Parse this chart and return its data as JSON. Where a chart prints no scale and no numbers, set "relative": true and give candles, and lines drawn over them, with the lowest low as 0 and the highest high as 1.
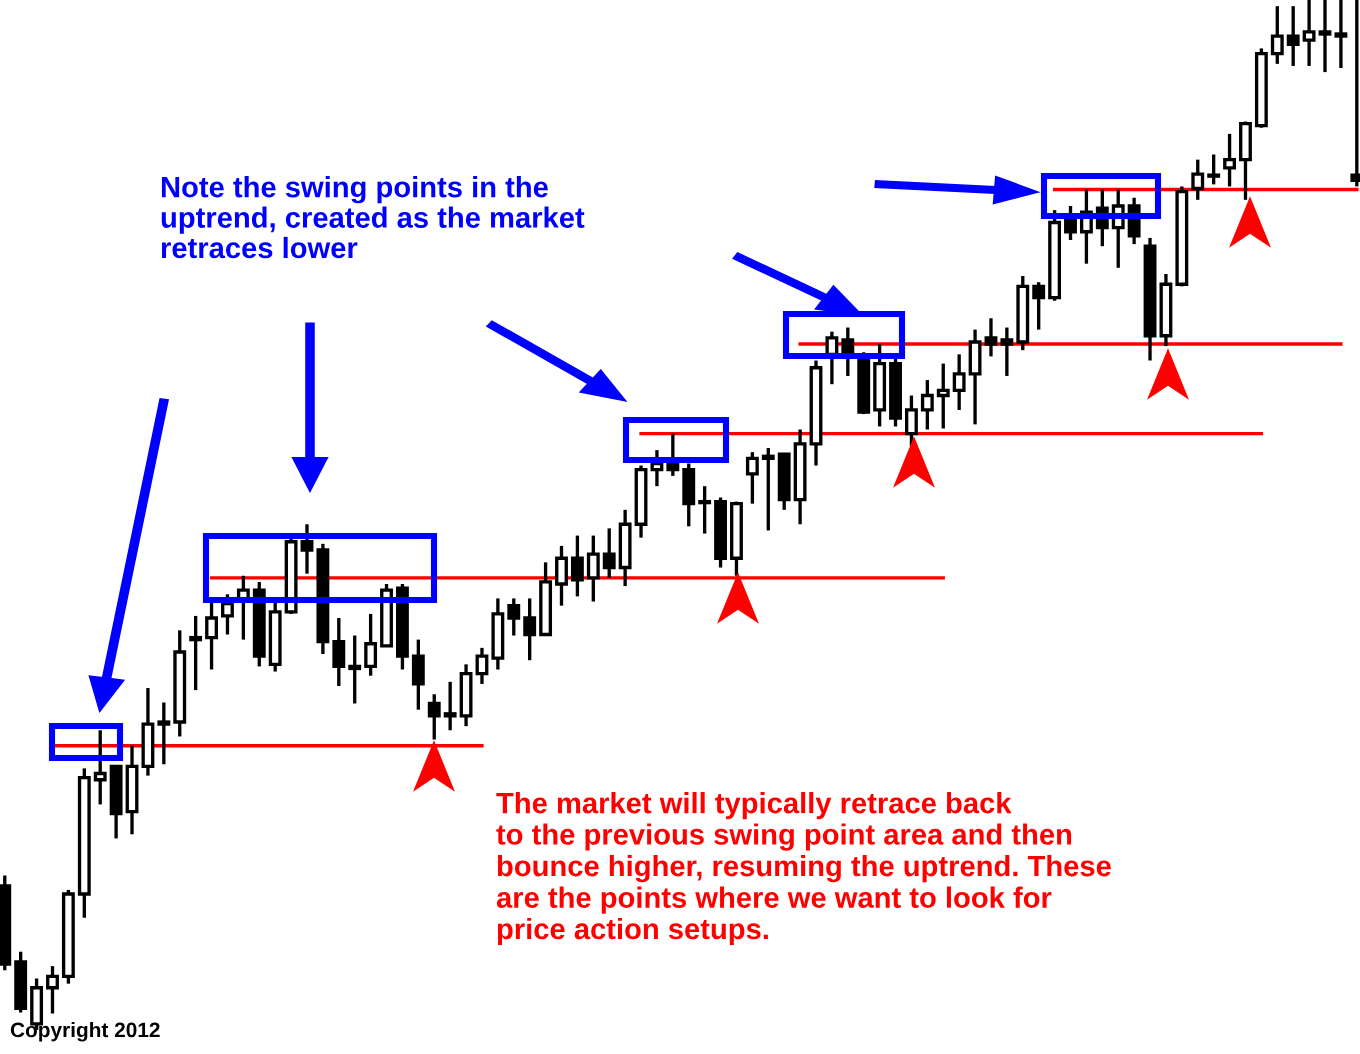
{
  "chart_data": {
    "type": "candlestick",
    "relative": true,
    "color": "#000000",
    "categories": [
      null,
      null,
      null,
      null,
      null,
      null,
      null,
      null,
      null,
      null,
      null,
      null,
      null,
      null,
      null,
      null,
      null,
      null,
      null,
      null,
      null,
      null,
      null,
      null,
      null,
      null,
      null,
      null,
      null,
      null,
      null,
      null,
      null,
      null,
      null,
      null,
      null,
      null,
      null,
      null,
      null,
      null,
      null,
      null,
      null,
      null,
      null,
      null,
      null,
      null,
      null,
      null,
      null,
      null,
      null,
      null,
      null,
      null,
      null,
      null,
      null,
      null,
      null,
      null,
      null,
      null,
      null,
      null,
      null,
      null,
      null,
      null,
      null,
      null,
      null,
      null,
      null,
      null,
      null,
      null,
      null,
      null,
      null,
      null,
      null,
      null
    ],
    "ohlc": [
      [
        0.14,
        0.15,
        0.058,
        0.064
      ],
      [
        0.066,
        0.076,
        0.017,
        0.021
      ],
      [
        0.006,
        0.05,
        0,
        0.041
      ],
      [
        0.041,
        0.062,
        0.016,
        0.052
      ],
      [
        0.052,
        0.136,
        0.045,
        0.132
      ],
      [
        0.132,
        0.254,
        0.109,
        0.245
      ],
      [
        0.243,
        0.291,
        0.219,
        0.249
      ],
      [
        0.256,
        0.256,
        0.186,
        0.21
      ],
      [
        0.212,
        0.276,
        0.19,
        0.256
      ],
      [
        0.256,
        0.332,
        0.247,
        0.297
      ],
      [
        0.297,
        0.318,
        0.258,
        0.299
      ],
      [
        0.299,
        0.388,
        0.285,
        0.367
      ],
      [
        0.379,
        0.402,
        0.33,
        0.381
      ],
      [
        0.381,
        0.417,
        0.35,
        0.4
      ],
      [
        0.402,
        0.423,
        0.384,
        0.414
      ],
      [
        0.417,
        0.441,
        0.379,
        0.427
      ],
      [
        0.427,
        0.435,
        0.353,
        0.363
      ],
      [
        0.355,
        0.417,
        0.348,
        0.406
      ],
      [
        0.406,
        0.48,
        0.404,
        0.474
      ],
      [
        0.474,
        0.491,
        0.443,
        0.466
      ],
      [
        0.466,
        0.472,
        0.365,
        0.377
      ],
      [
        0.377,
        0.4,
        0.334,
        0.353
      ],
      [
        0.353,
        0.383,
        0.317,
        0.351
      ],
      [
        0.353,
        0.404,
        0.344,
        0.375
      ],
      [
        0.373,
        0.433,
        0.373,
        0.427
      ],
      [
        0.429,
        0.433,
        0.35,
        0.363
      ],
      [
        0.363,
        0.379,
        0.311,
        0.336
      ],
      [
        0.317,
        0.326,
        0.282,
        0.305
      ],
      [
        0.305,
        0.338,
        0.291,
        0.307
      ],
      [
        0.305,
        0.355,
        0.295,
        0.346
      ],
      [
        0.346,
        0.371,
        0.336,
        0.363
      ],
      [
        0.361,
        0.419,
        0.35,
        0.404
      ],
      [
        0.412,
        0.419,
        0.383,
        0.4
      ],
      [
        0.4,
        0.419,
        0.359,
        0.384
      ],
      [
        0.384,
        0.454,
        0.383,
        0.435
      ],
      [
        0.433,
        0.47,
        0.412,
        0.458
      ],
      [
        0.458,
        0.48,
        0.421,
        0.437
      ],
      [
        0.439,
        0.48,
        0.416,
        0.462
      ],
      [
        0.462,
        0.487,
        0.439,
        0.449
      ],
      [
        0.449,
        0.505,
        0.431,
        0.491
      ],
      [
        0.491,
        0.548,
        0.478,
        0.544
      ],
      [
        0.544,
        0.563,
        0.528,
        0.55
      ],
      [
        0.551,
        0.579,
        0.538,
        0.544
      ],
      [
        0.544,
        0.55,
        0.489,
        0.511
      ],
      [
        0.513,
        0.528,
        0.482,
        0.512
      ],
      [
        0.513,
        0.517,
        0.449,
        0.458
      ],
      [
        0.458,
        0.513,
        0.441,
        0.511
      ],
      [
        0.54,
        0.561,
        0.511,
        0.555
      ],
      [
        0.555,
        0.565,
        0.485,
        0.557
      ],
      [
        0.559,
        0.559,
        0.505,
        0.515
      ],
      [
        0.515,
        0.583,
        0.491,
        0.569
      ],
      [
        0.569,
        0.65,
        0.548,
        0.643
      ],
      [
        0.656,
        0.678,
        0.627,
        0.672
      ],
      [
        0.67,
        0.682,
        0.635,
        0.656
      ],
      [
        0.652,
        0.658,
        0.598,
        0.6
      ],
      [
        0.602,
        0.666,
        0.586,
        0.647
      ],
      [
        0.647,
        0.654,
        0.586,
        0.594
      ],
      [
        0.579,
        0.616,
        0.567,
        0.602
      ],
      [
        0.602,
        0.631,
        0.583,
        0.616
      ],
      [
        0.616,
        0.647,
        0.584,
        0.621
      ],
      [
        0.621,
        0.656,
        0.602,
        0.637
      ],
      [
        0.637,
        0.68,
        0.588,
        0.668
      ],
      [
        0.672,
        0.691,
        0.654,
        0.666
      ],
      [
        0.67,
        0.682,
        0.635,
        0.666
      ],
      [
        0.668,
        0.732,
        0.66,
        0.722
      ],
      [
        0.722,
        0.726,
        0.68,
        0.711
      ],
      [
        0.711,
        0.796,
        0.708,
        0.784
      ],
      [
        0.788,
        0.8,
        0.767,
        0.775
      ],
      [
        0.775,
        0.816,
        0.744,
        0.794
      ],
      [
        0.798,
        0.816,
        0.761,
        0.779
      ],
      [
        0.779,
        0.816,
        0.74,
        0.8
      ],
      [
        0.8,
        0.808,
        0.763,
        0.771
      ],
      [
        0.761,
        0.769,
        0.65,
        0.674
      ],
      [
        0.674,
        0.734,
        0.664,
        0.724
      ],
      [
        0.724,
        0.819,
        0.722,
        0.814
      ],
      [
        0.817,
        0.845,
        0.806,
        0.831
      ],
      [
        0.829,
        0.85,
        0.821,
        0.83
      ],
      [
        0.837,
        0.87,
        0.819,
        0.845
      ],
      [
        0.845,
        0.882,
        0.806,
        0.88
      ],
      [
        0.878,
        0.953,
        0.876,
        0.948
      ],
      [
        0.948,
        0.994,
        0.938,
        0.965
      ],
      [
        0.965,
        0.994,
        0.936,
        0.957
      ],
      [
        0.961,
        1,
        0.936,
        0.969
      ],
      [
        0.967,
        1,
        0.93,
        0.969
      ],
      [
        0.967,
        1,
        0.934,
        0.965
      ],
      [
        0.83,
        1,
        0.819,
        0.825
      ]
    ],
    "series": [
      {
        "type": "line",
        "color": "#ff0000",
        "values": [
          null,
          null,
          null,
          0.276,
          0.276,
          0.276,
          0.276,
          0.276,
          0.276,
          0.276,
          0.276,
          0.276,
          0.276,
          0.276,
          0.276,
          0.276,
          0.276,
          0.276,
          0.276,
          0.276,
          0.276,
          0.276,
          0.276,
          0.276,
          0.276,
          0.276,
          0.276,
          0.276,
          0.276,
          0.276,
          0.276,
          null,
          null,
          null,
          null,
          null,
          null,
          null,
          null,
          null,
          null,
          null,
          null,
          null,
          null,
          null,
          null,
          null,
          null,
          null,
          null,
          null,
          null,
          null,
          null,
          null,
          null,
          null,
          null,
          null,
          null,
          null,
          null,
          null,
          null,
          null,
          null,
          null,
          null,
          null,
          null,
          null,
          null,
          null,
          null,
          null,
          null,
          null,
          null,
          null,
          null,
          null,
          null,
          null,
          null,
          null
        ]
      },
      {
        "type": "line",
        "color": "#ff0000",
        "values": [
          null,
          null,
          null,
          null,
          null,
          null,
          null,
          null,
          null,
          null,
          null,
          null,
          null,
          0.439,
          0.439,
          0.439,
          0.439,
          0.439,
          0.439,
          0.439,
          0.439,
          0.439,
          0.439,
          0.439,
          0.439,
          0.439,
          0.439,
          0.439,
          0.439,
          0.439,
          0.439,
          0.439,
          0.439,
          0.439,
          0.439,
          0.439,
          0.439,
          0.439,
          0.439,
          0.439,
          0.439,
          0.439,
          0.439,
          0.439,
          0.439,
          0.439,
          0.439,
          0.439,
          0.439,
          0.439,
          0.439,
          0.439,
          0.439,
          0.439,
          0.439,
          0.439,
          0.439,
          0.439,
          0.439,
          0.439,
          null,
          null,
          null,
          null,
          null,
          null,
          null,
          null,
          null,
          null,
          null,
          null,
          null,
          null,
          null,
          null,
          null,
          null,
          null,
          null,
          null,
          null,
          null,
          null,
          null,
          null
        ]
      },
      {
        "type": "line",
        "color": "#ff0000",
        "values": [
          null,
          null,
          null,
          null,
          null,
          null,
          null,
          null,
          null,
          null,
          null,
          null,
          null,
          null,
          null,
          null,
          null,
          null,
          null,
          null,
          null,
          null,
          null,
          null,
          null,
          null,
          null,
          null,
          null,
          null,
          null,
          null,
          null,
          null,
          null,
          null,
          null,
          null,
          null,
          null,
          0.579,
          0.579,
          0.579,
          0.579,
          0.579,
          0.579,
          0.579,
          0.579,
          0.579,
          0.579,
          0.579,
          0.579,
          0.579,
          0.579,
          0.579,
          0.579,
          0.579,
          0.579,
          0.579,
          0.579,
          0.579,
          0.579,
          0.579,
          0.579,
          0.579,
          0.579,
          0.579,
          0.579,
          0.579,
          0.579,
          0.579,
          0.579,
          0.579,
          0.579,
          0.579,
          0.579,
          0.579,
          0.579,
          0.579,
          0.579,
          null,
          null,
          null,
          null,
          null,
          null
        ]
      },
      {
        "type": "line",
        "color": "#ff0000",
        "values": [
          null,
          null,
          null,
          null,
          null,
          null,
          null,
          null,
          null,
          null,
          null,
          null,
          null,
          null,
          null,
          null,
          null,
          null,
          null,
          null,
          null,
          null,
          null,
          null,
          null,
          null,
          null,
          null,
          null,
          null,
          null,
          null,
          null,
          null,
          null,
          null,
          null,
          null,
          null,
          null,
          null,
          null,
          null,
          null,
          null,
          null,
          null,
          null,
          null,
          null,
          0.666,
          0.666,
          0.666,
          0.666,
          0.666,
          0.666,
          0.666,
          0.666,
          0.666,
          0.666,
          0.666,
          0.666,
          0.666,
          0.666,
          0.666,
          0.666,
          0.666,
          0.666,
          0.666,
          0.666,
          0.666,
          0.666,
          0.666,
          0.666,
          0.666,
          0.666,
          0.666,
          0.666,
          0.666,
          0.666,
          0.666,
          0.666,
          0.666,
          0.666,
          0.666,
          null
        ]
      },
      {
        "type": "line",
        "color": "#ff0000",
        "values": [
          null,
          null,
          null,
          null,
          null,
          null,
          null,
          null,
          null,
          null,
          null,
          null,
          null,
          null,
          null,
          null,
          null,
          null,
          null,
          null,
          null,
          null,
          null,
          null,
          null,
          null,
          null,
          null,
          null,
          null,
          null,
          null,
          null,
          null,
          null,
          null,
          null,
          null,
          null,
          null,
          null,
          null,
          null,
          null,
          null,
          null,
          null,
          null,
          null,
          null,
          null,
          null,
          null,
          null,
          null,
          null,
          null,
          null,
          null,
          null,
          null,
          null,
          null,
          null,
          null,
          null,
          0.816,
          0.816,
          0.816,
          0.816,
          0.816,
          0.816,
          0.816,
          0.816,
          0.816,
          0.816,
          0.816,
          0.816,
          0.816,
          0.816,
          0.816,
          0.816,
          0.816,
          0.816,
          0.816,
          0.816
        ]
      }
    ],
    "annotations": [
      "Note the swing points in the\nuptrend, created as the market\nretraces lower",
      "The market will typically retrace back\nto the previous swing point area and then\nbounce higher, resuming the uptrend. These\nare the points where we want to look for\nprice action setups.",
      "Copyright 2012"
    ]
  }
}
